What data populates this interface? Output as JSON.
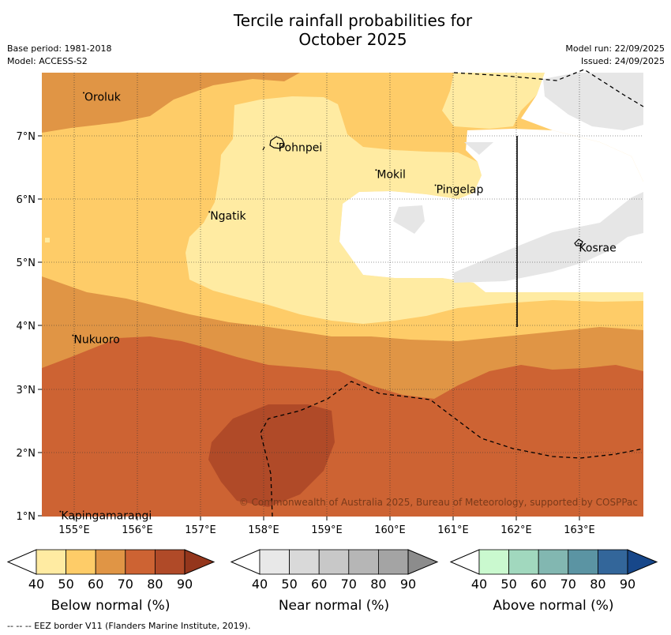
{
  "title_line1": "Tercile rainfall probabilities for",
  "title_line2": "October 2025",
  "base_period": "Base period: 1981-2018",
  "model": "Model: ACCESS-S2",
  "model_run": "Model run: 22/09/2025",
  "issued": "Issued: 24/09/2025",
  "copyright": "© Commonwealth of Australia 2025, Bureau of Meteorology, supported by COSPPac",
  "footer": "--  --  -- EEZ border V11 (Flanders Marine Institute, 2019).",
  "axes": {
    "lon_ticks": [
      "155°E",
      "156°E",
      "157°E",
      "158°E",
      "159°E",
      "160°E",
      "161°E",
      "162°E",
      "163°E"
    ],
    "lat_ticks": [
      "7°N",
      "6°N",
      "5°N",
      "4°N",
      "3°N",
      "2°N",
      "1°N"
    ]
  },
  "places": [
    {
      "name": "Oroluk",
      "lon": 155.15,
      "lat": 7.68
    },
    {
      "name": "Pohnpei",
      "lon": 158.22,
      "lat": 6.88
    },
    {
      "name": "Mokil",
      "lon": 159.78,
      "lat": 6.46
    },
    {
      "name": "Pingelap",
      "lon": 160.72,
      "lat": 6.22
    },
    {
      "name": "Ngatik",
      "lon": 157.14,
      "lat": 5.8
    },
    {
      "name": "Kosrae",
      "lon": 162.98,
      "lat": 5.3
    },
    {
      "name": "Nukuoro",
      "lon": 154.98,
      "lat": 3.85
    },
    {
      "name": "Kapingamarangi",
      "lon": 154.78,
      "lat": 1.07
    }
  ],
  "colorbars": [
    {
      "title": "Below normal (%)",
      "levels": [
        "40",
        "50",
        "60",
        "70",
        "80",
        "90"
      ],
      "colors": [
        "#ffeba2",
        "#fecc68",
        "#e09545",
        "#cd6333",
        "#b04a28",
        "#94361c"
      ]
    },
    {
      "title": "Near normal (%)",
      "levels": [
        "40",
        "50",
        "60",
        "70",
        "80",
        "90"
      ],
      "colors": [
        "#e8e8e8",
        "#d9d9d9",
        "#c8c8c8",
        "#b6b6b6",
        "#a4a4a4",
        "#8c8c8c"
      ]
    },
    {
      "title": "Above normal (%)",
      "levels": [
        "40",
        "50",
        "60",
        "70",
        "80",
        "90"
      ],
      "colors": [
        "#caf9cf",
        "#a1d8be",
        "#82b7b1",
        "#5b94a3",
        "#33669a",
        "#17478a"
      ]
    }
  ],
  "colors": {
    "below_40": "#ffeba2",
    "below_50": "#fecc68",
    "below_60": "#e09545",
    "below_70": "#cd6333",
    "below_80": "#b04a28",
    "near_40": "#e6e6e6"
  }
}
